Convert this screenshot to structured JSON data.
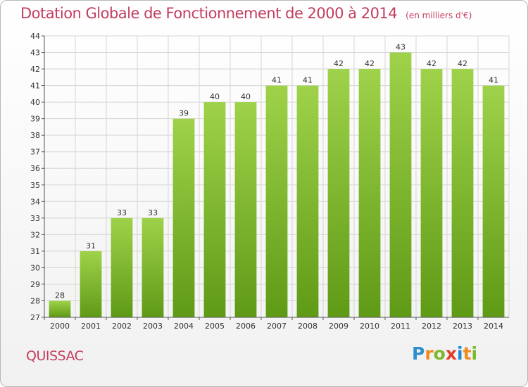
{
  "title": "Dotation Globale de Fonctionnement de 2000 à 2014",
  "unit_note": "(en milliers d'€)",
  "commune": "QUISSAC",
  "logo": {
    "text": "Proxiti"
  },
  "colors": {
    "bar_top": "#9fd24a",
    "bar_bottom": "#5f9a16",
    "title": "#c43d5e",
    "grid": "#d6d6d6",
    "axis": "#555555"
  },
  "chart_data": {
    "type": "bar",
    "title": "Dotation Globale de Fonctionnement de 2000 à 2014",
    "subtitle": "(en milliers d'€)",
    "categories": [
      "2000",
      "2001",
      "2002",
      "2003",
      "2004",
      "2005",
      "2006",
      "2007",
      "2008",
      "2009",
      "2010",
      "2011",
      "2012",
      "2013",
      "2014"
    ],
    "values": [
      28,
      31,
      33,
      33,
      39,
      40,
      40,
      41,
      41,
      42,
      42,
      43,
      42,
      42,
      41
    ],
    "xlabel": "",
    "ylabel": "",
    "ylim": [
      27,
      44
    ],
    "yticks": [
      27,
      28,
      29,
      30,
      31,
      32,
      33,
      34,
      35,
      36,
      37,
      38,
      39,
      40,
      41,
      42,
      43,
      44
    ],
    "grid": true,
    "data_labels": true
  }
}
